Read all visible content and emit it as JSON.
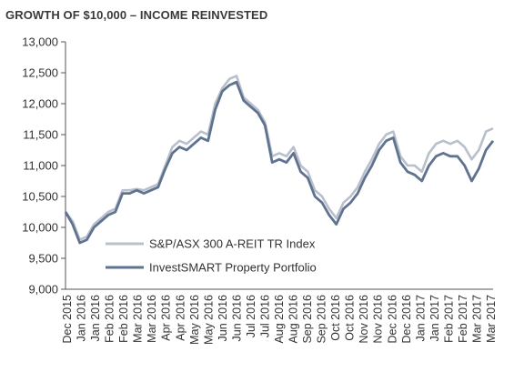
{
  "chart_data": {
    "type": "line",
    "title": "GROWTH OF $10,000 – INCOME REINVESTED",
    "xlabel": "",
    "ylabel": "",
    "ylim": [
      9000,
      13000
    ],
    "y_ticks": [
      "9,000",
      "9,500",
      "10,000",
      "10,500",
      "11,000",
      "11,500",
      "12,000",
      "12,500",
      "13,000"
    ],
    "x_ticks": [
      "Dec 2015",
      "Jan 2016",
      "Jan 2016",
      "Feb 2016",
      "Feb 2016",
      "Mar 2016",
      "Mar 2016",
      "Apr 2016",
      "Apr 2016",
      "May 2016",
      "May 2016",
      "Jun 2016",
      "Jun 2016",
      "Jul 2016",
      "Jul 2016",
      "Aug 2016",
      "Aug 2016",
      "Sep 2016",
      "Sep 2016",
      "Oct 2016",
      "Oct 2016",
      "Nov 2016",
      "Nov 2016",
      "Dec 2016",
      "Dec 2016",
      "Jan 2017",
      "Jan 2017",
      "Feb 2017",
      "Feb 2017",
      "Mar 2017",
      "Mar 2017"
    ],
    "grid": false,
    "legend_position": "bottom-center",
    "series": [
      {
        "name": "S&P/ASX 300 A-REIT TR Index",
        "color": "#b8c0cc",
        "values": [
          10250,
          10100,
          9800,
          9850,
          10050,
          10150,
          10250,
          10300,
          10600,
          10600,
          10620,
          10600,
          10650,
          10700,
          11000,
          11300,
          11400,
          11350,
          11450,
          11550,
          11500,
          12000,
          12250,
          12400,
          12450,
          12100,
          12000,
          11900,
          11700,
          11150,
          11200,
          11150,
          11300,
          11000,
          10900,
          10600,
          10500,
          10300,
          10150,
          10400,
          10500,
          10650,
          10900,
          11100,
          11350,
          11500,
          11550,
          11150,
          11000,
          11000,
          10900,
          11200,
          11350,
          11400,
          11350,
          11400,
          11300,
          11100,
          11250,
          11550,
          11600
        ]
      },
      {
        "name": "InvestSMART Property Portfolio",
        "color": "#5f7290",
        "values": [
          10250,
          10050,
          9750,
          9800,
          10000,
          10100,
          10200,
          10250,
          10550,
          10550,
          10600,
          10550,
          10600,
          10650,
          10950,
          11200,
          11300,
          11250,
          11350,
          11450,
          11400,
          11900,
          12200,
          12300,
          12350,
          12050,
          11950,
          11850,
          11650,
          11050,
          11100,
          11050,
          11200,
          10900,
          10800,
          10500,
          10400,
          10200,
          10050,
          10300,
          10400,
          10550,
          10800,
          11000,
          11250,
          11400,
          11450,
          11050,
          10900,
          10850,
          10750,
          11000,
          11150,
          11200,
          11150,
          11150,
          11000,
          10750,
          10950,
          11250,
          11400
        ]
      }
    ]
  }
}
